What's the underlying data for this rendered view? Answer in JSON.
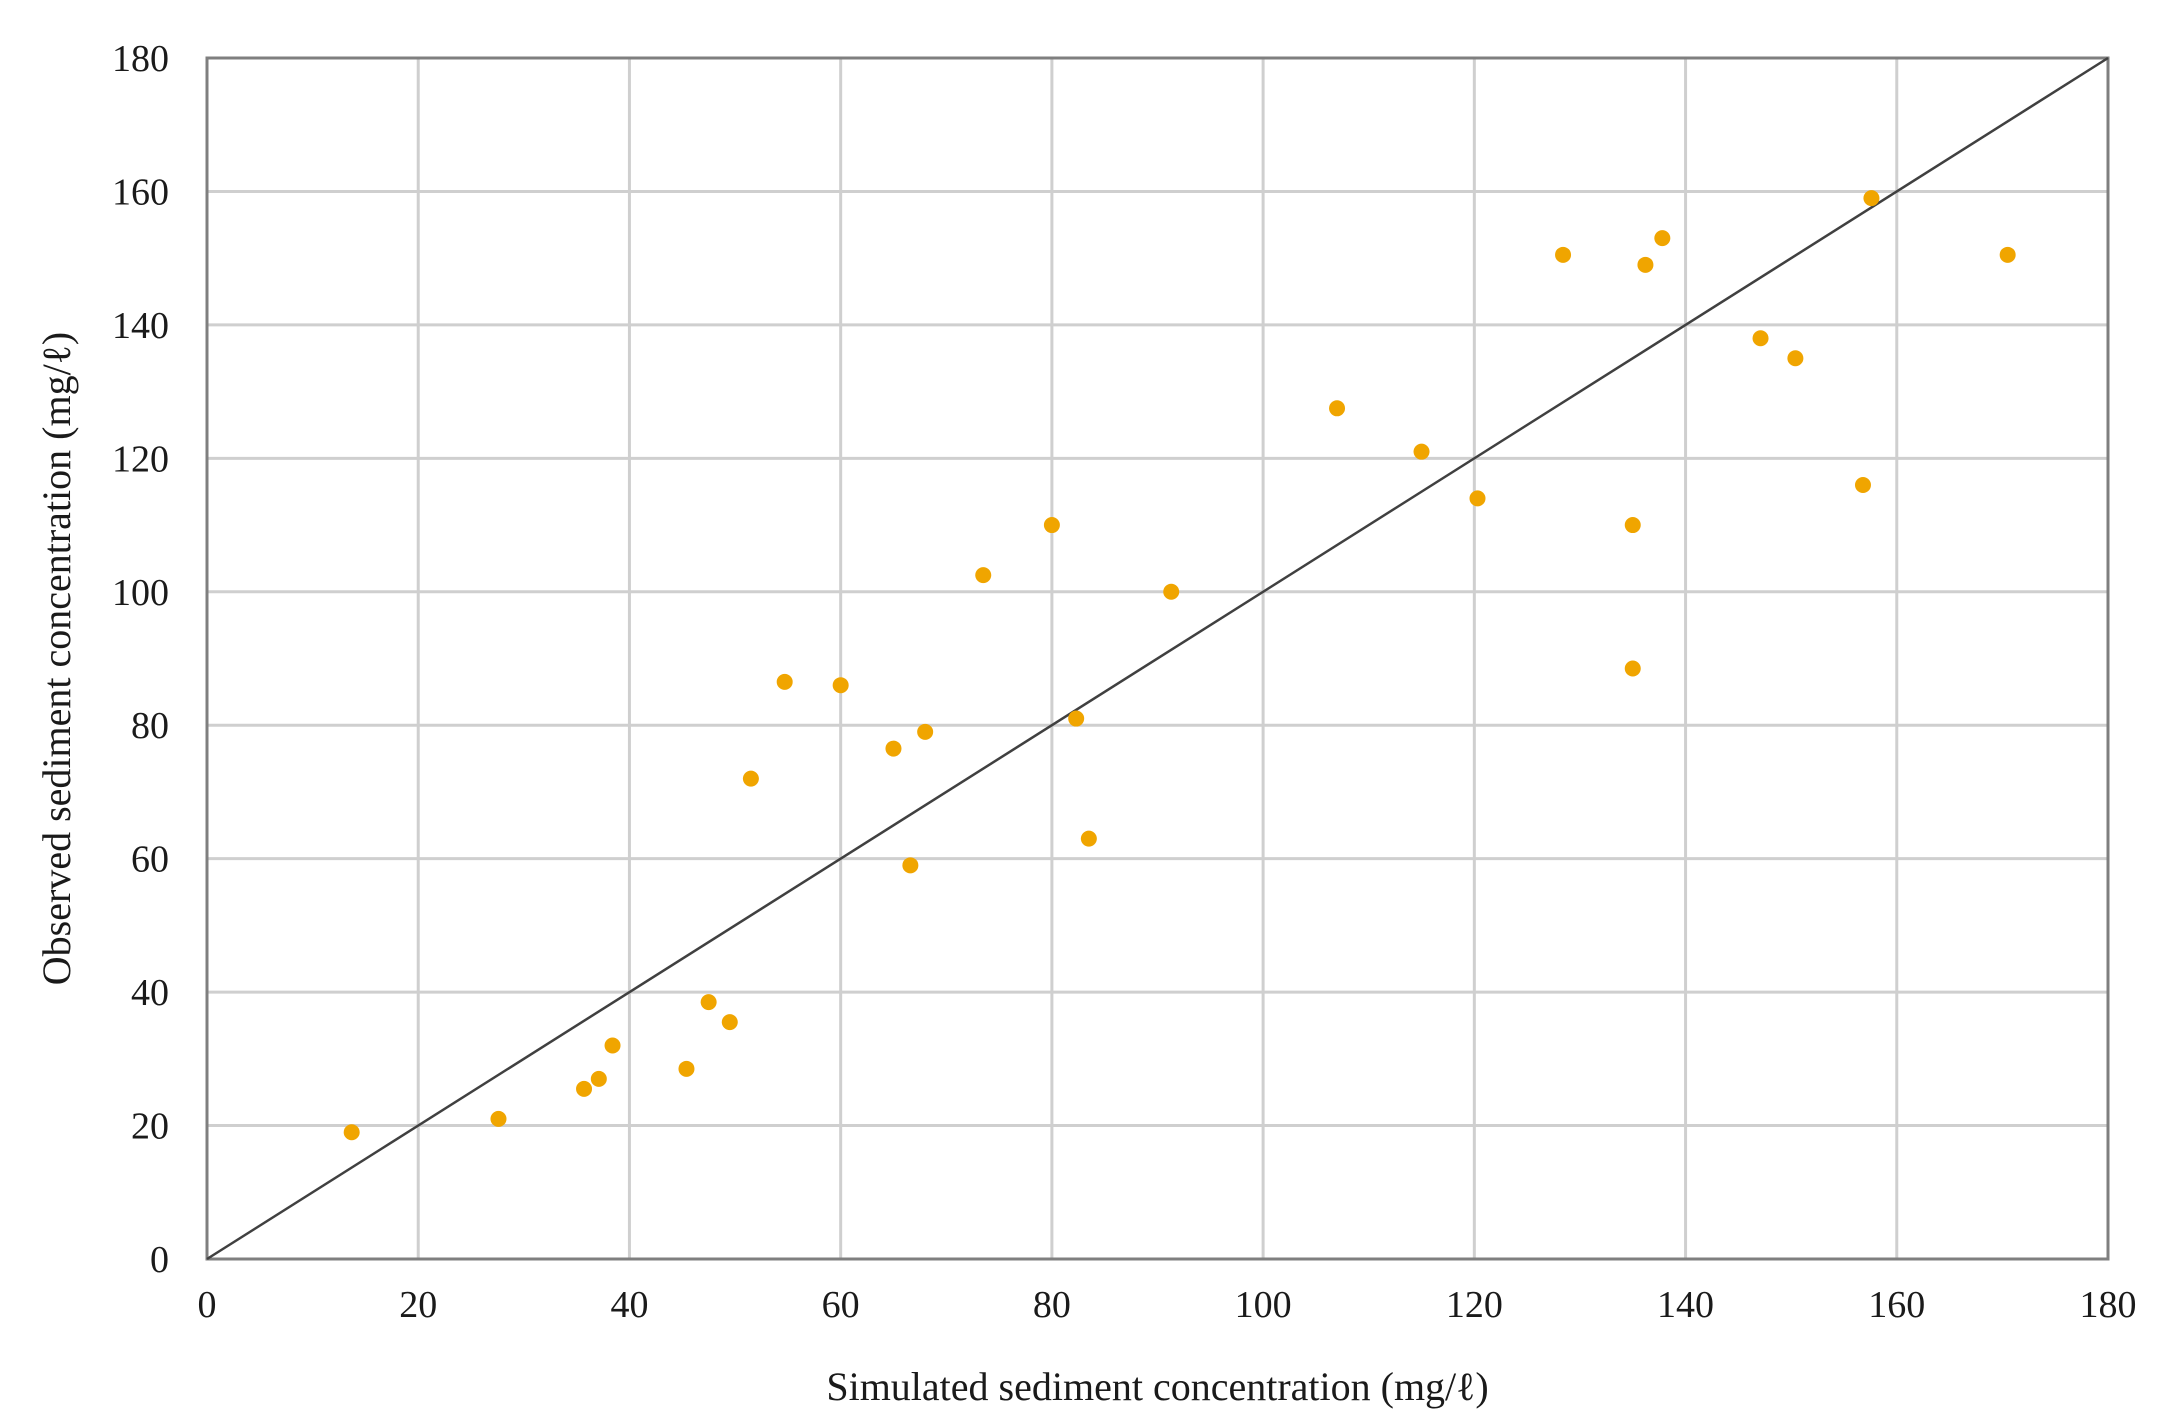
{
  "chart_data": {
    "type": "scatter",
    "title": "",
    "xlabel": "Simulated sediment concentration (mg/ℓ)",
    "ylabel": "Observed sediment concentration (mg/ℓ)",
    "xlim": [
      0,
      180
    ],
    "ylim": [
      0,
      180
    ],
    "x_ticks": [
      0,
      20,
      40,
      60,
      80,
      100,
      120,
      140,
      160,
      180
    ],
    "y_ticks": [
      0,
      20,
      40,
      60,
      80,
      100,
      120,
      140,
      160,
      180
    ],
    "x_tick_labels": [
      "0",
      "20",
      "40",
      "60",
      "80",
      "100",
      "120",
      "140",
      "160",
      "180"
    ],
    "y_tick_labels": [
      "0",
      "20",
      "40",
      "60",
      "80",
      "100",
      "120",
      "140",
      "160",
      "180"
    ],
    "grid": true,
    "legend": "none",
    "marker_color": "#f0a500",
    "reference_line": {
      "from": [
        0,
        0
      ],
      "to": [
        180,
        180
      ],
      "color": "#404040"
    },
    "series": [
      {
        "points": [
          [
            13.7,
            19
          ],
          [
            27.6,
            21
          ],
          [
            35.7,
            25.5
          ],
          [
            37.1,
            27
          ],
          [
            38.4,
            32
          ],
          [
            45.4,
            28.5
          ],
          [
            47.5,
            38.5
          ],
          [
            49.5,
            35.5
          ],
          [
            51.5,
            72
          ],
          [
            54.7,
            86.5
          ],
          [
            60,
            86
          ],
          [
            65,
            76.5
          ],
          [
            66.6,
            59
          ],
          [
            68,
            79
          ],
          [
            73.5,
            102.5
          ],
          [
            80,
            110
          ],
          [
            82.3,
            81
          ],
          [
            83.5,
            63
          ],
          [
            91.3,
            100
          ],
          [
            107,
            127.5
          ],
          [
            115,
            121
          ],
          [
            120.3,
            114
          ],
          [
            128.4,
            150.5
          ],
          [
            135,
            88.5
          ],
          [
            135,
            110
          ],
          [
            136.2,
            149
          ],
          [
            137.8,
            153
          ],
          [
            147.1,
            138
          ],
          [
            150.4,
            135
          ],
          [
            156.8,
            116
          ],
          [
            157.6,
            159
          ],
          [
            170.5,
            150.5
          ]
        ]
      }
    ]
  }
}
